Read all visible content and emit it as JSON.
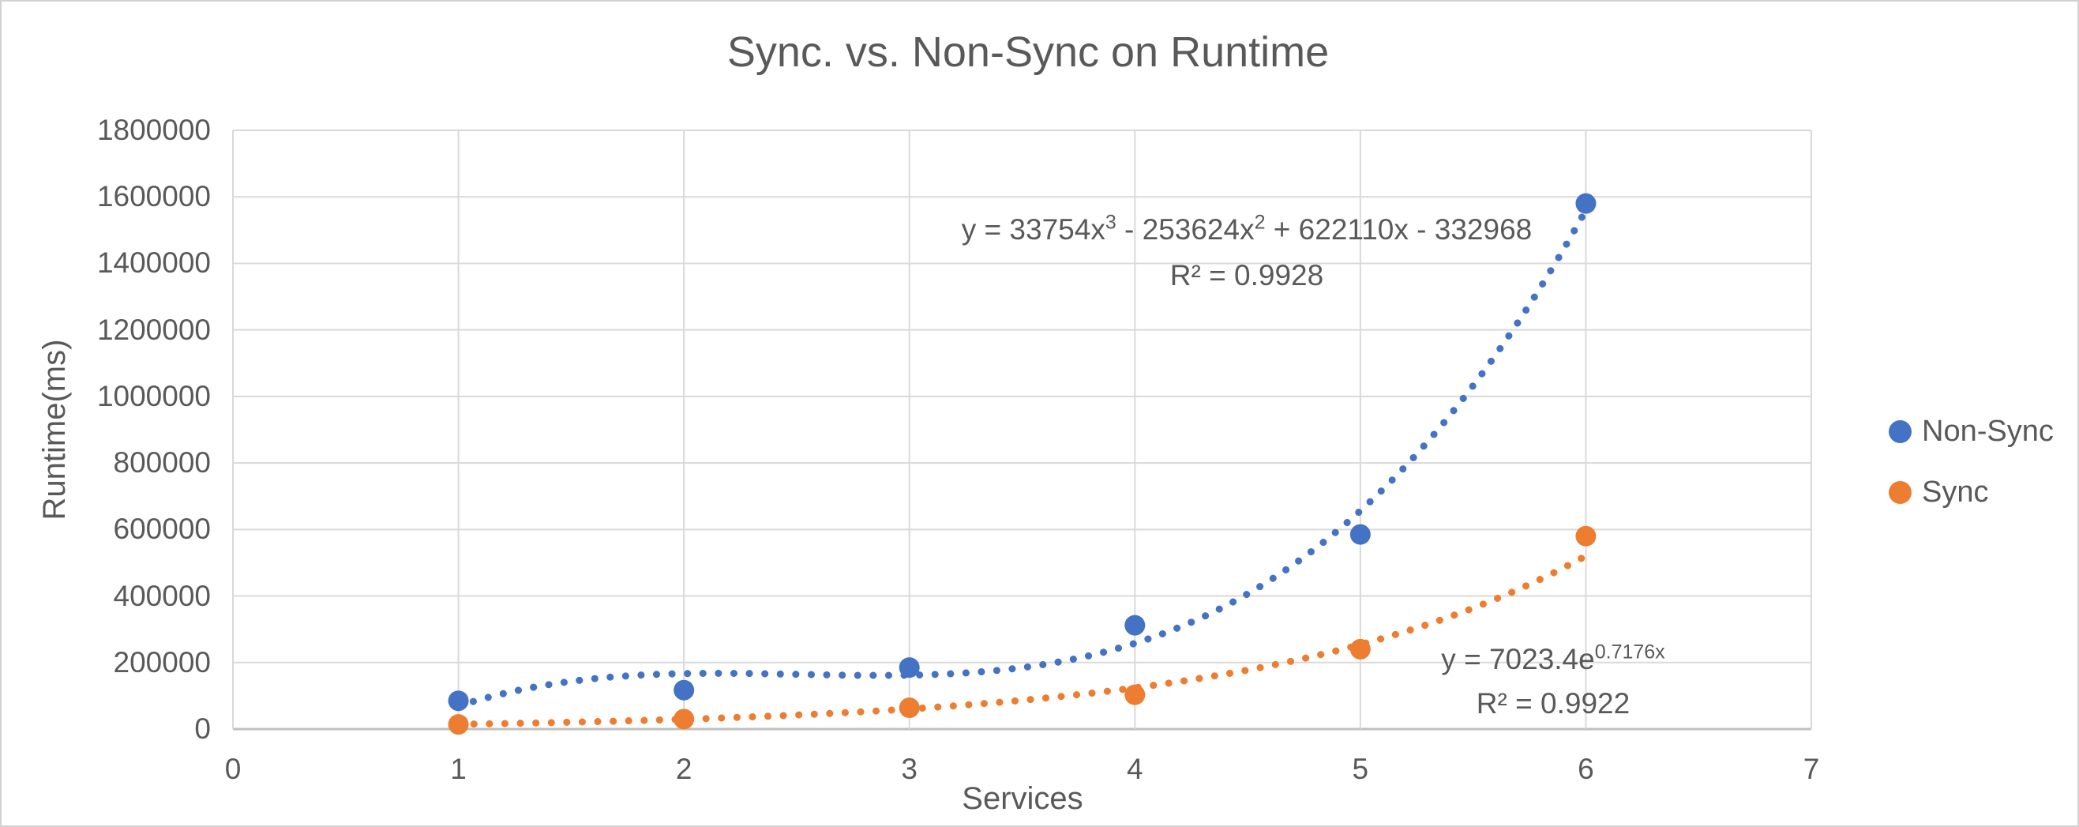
{
  "chart": {
    "title": "Sync. vs. Non-Sync on Runtime",
    "x_axis_label": "Services",
    "y_axis_label": "Runtime(ms)"
  },
  "legend": {
    "items": [
      {
        "label": "Non-Sync",
        "color": "#4472C4"
      },
      {
        "label": "Sync",
        "color": "#ED7D31"
      }
    ]
  },
  "annotations": {
    "nonsync_equation": {
      "part1": "y = 33754x",
      "sup1": "3",
      "part2": " - 253624x",
      "sup2": "2",
      "part3": " + 622110x - 332968",
      "r2": "R² = 0.9928"
    },
    "sync_equation": {
      "base": "y = 7023.4e",
      "exponent": "0.7176x",
      "r2": "R² = 0.9922"
    }
  },
  "chart_data": {
    "type": "scatter",
    "title": "Sync. vs. Non-Sync on Runtime",
    "xlabel": "Services",
    "ylabel": "Runtime(ms)",
    "xlim": [
      0,
      7
    ],
    "ylim": [
      0,
      1800000
    ],
    "x_ticks": [
      0,
      1,
      2,
      3,
      4,
      5,
      6,
      7
    ],
    "y_ticks": [
      0,
      200000,
      400000,
      600000,
      800000,
      1000000,
      1200000,
      1400000,
      1600000,
      1800000
    ],
    "grid": true,
    "legend_position": "right",
    "series": [
      {
        "name": "Non-Sync",
        "color": "#4472C4",
        "x": [
          1,
          2,
          3,
          4,
          5,
          6
        ],
        "y": [
          85000,
          117000,
          185000,
          312000,
          585000,
          1580000
        ],
        "trendline": {
          "type": "polynomial",
          "degree": 3,
          "coefficients": [
            33754,
            -253624,
            622110,
            -332968
          ],
          "equation": "y = 33754x³ - 253624x² + 622110x - 332968",
          "r2": 0.9928,
          "style": "dotted",
          "range": [
            1,
            6
          ]
        }
      },
      {
        "name": "Sync",
        "color": "#ED7D31",
        "x": [
          1,
          2,
          3,
          4,
          5,
          6
        ],
        "y": [
          14000,
          30000,
          64000,
          103000,
          240000,
          580000
        ],
        "trendline": {
          "type": "exponential",
          "a": 7023.4,
          "b": 0.7176,
          "equation": "y = 7023.4e^(0.7176x)",
          "r2": 0.9922,
          "style": "dotted",
          "range": [
            1,
            6
          ]
        }
      }
    ]
  },
  "colors": {
    "text": "#595959",
    "gridline": "#D9D9D9",
    "axis_line": "#BFBFBF",
    "background": "#FFFFFF",
    "border": "#D2D2D2"
  }
}
